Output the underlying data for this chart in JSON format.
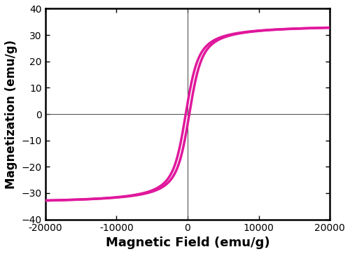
{
  "title": "",
  "xlabel": "Magnetic Field (emu/g)",
  "ylabel": "Magnetization (emu/g)",
  "xlim": [
    -20000,
    20000
  ],
  "ylim": [
    -40,
    40
  ],
  "xticks": [
    -20000,
    -10000,
    0,
    10000,
    20000
  ],
  "yticks": [
    -40,
    -30,
    -20,
    -10,
    0,
    10,
    20,
    30,
    40
  ],
  "line_color": "#E0189C",
  "line_width": 2.5,
  "Ms": 34.0,
  "Hc": 250,
  "alpha": 700,
  "background_color": "#ffffff",
  "spine_color": "#000000",
  "xlabel_fontsize": 13,
  "ylabel_fontsize": 12,
  "tick_fontsize": 10,
  "xlabel_fontweight": "bold",
  "ylabel_fontweight": "bold"
}
